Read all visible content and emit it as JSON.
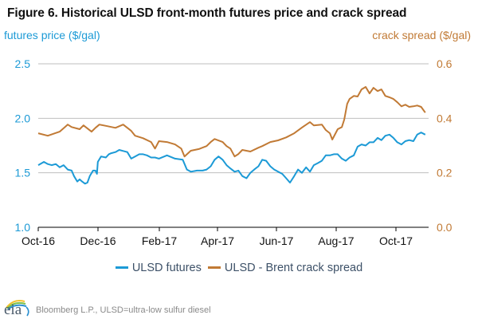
{
  "title": "Figure 6. Historical ULSD front-month futures price and crack spread",
  "footer": {
    "logo_text": "eia",
    "source": "Bloomberg L.P., ULSD=ultra-low sulfur diesel"
  },
  "chart_data": {
    "type": "line",
    "title": "Figure 6. Historical ULSD front-month futures price and crack spread",
    "xlabel": "",
    "ylabel": "futures price ($/gal)",
    "y2label": "crack spread ($/gal)",
    "ylim": [
      1.0,
      2.5
    ],
    "y2lim": [
      0.0,
      0.6
    ],
    "yticks": [
      "1.0",
      "1.5",
      "2.0",
      "2.5"
    ],
    "y2ticks": [
      "0.0",
      "0.2",
      "0.4",
      "0.6"
    ],
    "xlim_months": [
      0,
      13.3
    ],
    "xticks": [
      "Oct-16",
      "Dec-16",
      "Feb-17",
      "Apr-17",
      "Jun-17",
      "Aug-17",
      "Oct-17"
    ],
    "grid": true,
    "legend_position": "bottom",
    "colors": {
      "futures": "#1c9ad6",
      "crack": "#c17a35",
      "grid": "#bfbfbf",
      "axis": "#000000"
    },
    "series": [
      {
        "name": "ULSD futures",
        "axis": "left",
        "x_months": [
          0.0,
          0.19,
          0.32,
          0.45,
          0.59,
          0.72,
          0.85,
          0.99,
          1.12,
          1.2,
          1.31,
          1.39,
          1.47,
          1.57,
          1.65,
          1.73,
          1.84,
          1.92,
          1.97,
          2.0,
          2.11,
          2.27,
          2.37,
          2.45,
          2.59,
          2.72,
          2.85,
          2.99,
          3.12,
          3.25,
          3.39,
          3.52,
          3.65,
          3.79,
          3.92,
          4.05,
          4.32,
          4.59,
          4.85,
          4.99,
          5.12,
          5.33,
          5.52,
          5.65,
          5.79,
          5.92,
          6.05,
          6.19,
          6.32,
          6.45,
          6.59,
          6.72,
          6.85,
          6.99,
          7.12,
          7.25,
          7.39,
          7.52,
          7.65,
          7.79,
          7.92,
          8.05,
          8.19,
          8.32,
          8.45,
          8.59,
          8.72,
          8.85,
          8.99,
          9.12,
          9.25,
          9.39,
          9.52,
          9.65,
          9.79,
          9.92,
          10.05,
          10.19,
          10.32,
          10.45,
          10.59,
          10.72,
          10.85,
          10.99,
          11.12,
          11.25,
          11.39,
          11.52,
          11.65,
          11.79,
          11.92,
          12.05,
          12.19,
          12.32,
          12.45,
          12.59,
          12.72,
          12.85,
          12.99
        ],
        "values": [
          1.57,
          1.6,
          1.58,
          1.57,
          1.58,
          1.55,
          1.57,
          1.53,
          1.52,
          1.47,
          1.42,
          1.44,
          1.42,
          1.4,
          1.41,
          1.47,
          1.52,
          1.52,
          1.49,
          1.6,
          1.65,
          1.64,
          1.67,
          1.68,
          1.69,
          1.71,
          1.7,
          1.69,
          1.63,
          1.65,
          1.67,
          1.67,
          1.66,
          1.64,
          1.64,
          1.63,
          1.66,
          1.63,
          1.62,
          1.53,
          1.51,
          1.52,
          1.52,
          1.53,
          1.56,
          1.62,
          1.65,
          1.62,
          1.57,
          1.54,
          1.51,
          1.52,
          1.47,
          1.45,
          1.5,
          1.53,
          1.56,
          1.62,
          1.61,
          1.56,
          1.53,
          1.51,
          1.49,
          1.45,
          1.41,
          1.47,
          1.53,
          1.5,
          1.55,
          1.51,
          1.57,
          1.59,
          1.61,
          1.66,
          1.66,
          1.67,
          1.67,
          1.63,
          1.61,
          1.64,
          1.66,
          1.74,
          1.76,
          1.75,
          1.78,
          1.78,
          1.82,
          1.8,
          1.84,
          1.85,
          1.82,
          1.78,
          1.76,
          1.79,
          1.8,
          1.79,
          1.85,
          1.87,
          1.85
        ]
      },
      {
        "name": "ULSD - Brent crack spread",
        "axis": "right",
        "x_months": [
          0.0,
          0.32,
          0.72,
          0.99,
          1.12,
          1.39,
          1.52,
          1.79,
          1.92,
          2.05,
          2.32,
          2.59,
          2.85,
          3.12,
          3.25,
          3.52,
          3.79,
          3.92,
          4.05,
          4.32,
          4.59,
          4.8,
          4.91,
          5.12,
          5.39,
          5.65,
          5.79,
          5.92,
          6.19,
          6.32,
          6.45,
          6.59,
          6.72,
          6.85,
          7.12,
          7.39,
          7.52,
          7.79,
          8.05,
          8.32,
          8.59,
          8.85,
          9.12,
          9.25,
          9.52,
          9.65,
          9.79,
          9.87,
          10.05,
          10.19,
          10.27,
          10.37,
          10.45,
          10.59,
          10.72,
          10.85,
          10.99,
          11.12,
          11.25,
          11.39,
          11.52,
          11.65,
          11.79,
          11.92,
          12.05,
          12.19,
          12.32,
          12.45,
          12.59,
          12.72,
          12.85,
          12.99
        ],
        "values": [
          0.345,
          0.336,
          0.351,
          0.377,
          0.368,
          0.36,
          0.374,
          0.351,
          0.365,
          0.377,
          0.371,
          0.365,
          0.377,
          0.354,
          0.336,
          0.327,
          0.313,
          0.289,
          0.316,
          0.313,
          0.304,
          0.289,
          0.26,
          0.281,
          0.287,
          0.298,
          0.313,
          0.324,
          0.313,
          0.298,
          0.289,
          0.26,
          0.269,
          0.284,
          0.278,
          0.292,
          0.298,
          0.313,
          0.319,
          0.33,
          0.345,
          0.366,
          0.386,
          0.374,
          0.377,
          0.357,
          0.345,
          0.322,
          0.36,
          0.368,
          0.395,
          0.453,
          0.471,
          0.482,
          0.48,
          0.506,
          0.515,
          0.491,
          0.512,
          0.5,
          0.506,
          0.482,
          0.477,
          0.471,
          0.459,
          0.444,
          0.45,
          0.442,
          0.444,
          0.447,
          0.442,
          0.421
        ]
      }
    ]
  }
}
